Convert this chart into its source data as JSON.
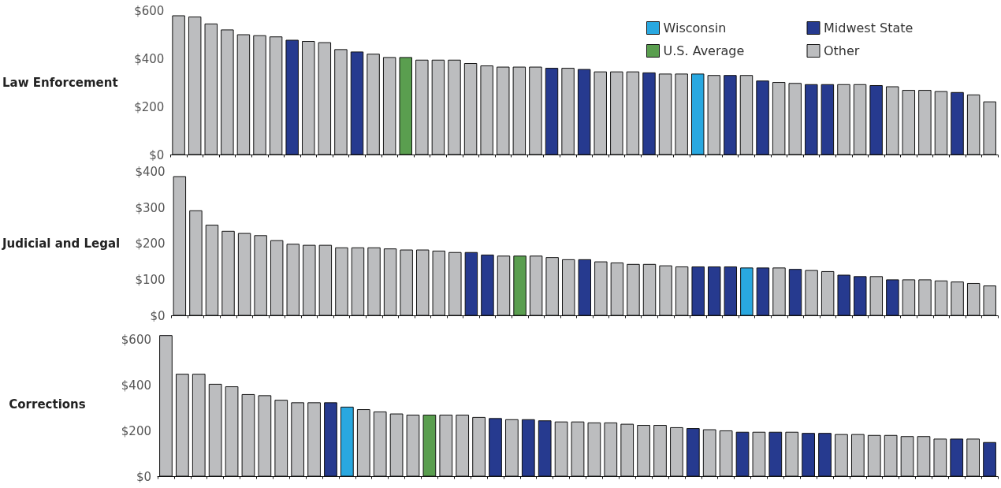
{
  "chart_data": [
    {
      "type": "bar",
      "ylabel": "Law Enforcement",
      "categories": [
        null,
        null,
        null,
        null,
        null,
        null,
        null,
        null,
        null,
        null,
        null,
        null,
        null,
        null,
        null,
        null,
        null,
        null,
        null,
        null,
        null,
        null,
        null,
        null,
        null,
        null,
        null,
        null,
        null,
        null,
        null,
        null,
        null,
        null,
        null,
        null,
        null,
        null,
        null,
        null,
        null,
        null,
        null,
        null,
        null,
        null,
        null,
        null,
        null,
        null,
        null
      ],
      "stacked": true,
      "legend": "top right",
      "tick_labels": "y",
      "grid": false,
      "ylim": [
        0,
        600
      ],
      "yticks": [
        {
          "value": 0,
          "label": "$0"
        },
        {
          "value": 200,
          "label": "$200"
        },
        {
          "value": 400,
          "label": "$400"
        },
        {
          "value": 600,
          "label": "$600"
        }
      ],
      "series": [
        {
          "name": "Wisconsin",
          "color": "#29a8e0",
          "values": [
            null,
            null,
            null,
            null,
            null,
            null,
            null,
            null,
            null,
            null,
            null,
            null,
            null,
            null,
            null,
            null,
            null,
            null,
            null,
            null,
            null,
            null,
            null,
            null,
            null,
            null,
            null,
            null,
            null,
            null,
            null,
            null,
            339,
            null,
            null,
            null,
            null,
            null,
            null,
            null,
            null,
            null,
            null,
            null,
            null,
            null,
            null,
            null,
            null,
            null,
            null
          ]
        },
        {
          "name": "Midwest State",
          "color": "#263a8f",
          "values": [
            null,
            null,
            null,
            null,
            null,
            null,
            null,
            480,
            null,
            null,
            null,
            431,
            null,
            null,
            null,
            null,
            null,
            null,
            null,
            null,
            null,
            null,
            null,
            363,
            null,
            358,
            null,
            null,
            null,
            344,
            null,
            null,
            null,
            null,
            333,
            null,
            310,
            null,
            null,
            295,
            295,
            null,
            null,
            291,
            null,
            null,
            null,
            null,
            262,
            null,
            null
          ]
        },
        {
          "name": "U.S. Average",
          "color": "#5a9e4f",
          "values": [
            null,
            null,
            null,
            null,
            null,
            null,
            null,
            null,
            null,
            null,
            null,
            null,
            null,
            null,
            408,
            null,
            null,
            null,
            null,
            null,
            null,
            null,
            null,
            null,
            null,
            null,
            null,
            null,
            null,
            null,
            null,
            null,
            null,
            null,
            null,
            null,
            null,
            null,
            null,
            null,
            null,
            null,
            null,
            null,
            null,
            null,
            null,
            null,
            null,
            null,
            null
          ]
        },
        {
          "name": "Other",
          "color": "#bcbdbf",
          "values": [
            582,
            577,
            548,
            523,
            503,
            499,
            494,
            null,
            475,
            470,
            441,
            null,
            422,
            408,
            null,
            397,
            397,
            397,
            383,
            373,
            368,
            368,
            368,
            null,
            363,
            null,
            348,
            348,
            348,
            null,
            339,
            339,
            null,
            333,
            null,
            333,
            null,
            304,
            300,
            null,
            null,
            295,
            295,
            null,
            286,
            271,
            271,
            266,
            null,
            252,
            223
          ]
        }
      ]
    },
    {
      "type": "bar",
      "ylabel": "Judicial and Legal",
      "categories": [
        null,
        null,
        null,
        null,
        null,
        null,
        null,
        null,
        null,
        null,
        null,
        null,
        null,
        null,
        null,
        null,
        null,
        null,
        null,
        null,
        null,
        null,
        null,
        null,
        null,
        null,
        null,
        null,
        null,
        null,
        null,
        null,
        null,
        null,
        null,
        null,
        null,
        null,
        null,
        null,
        null,
        null,
        null,
        null,
        null,
        null,
        null,
        null,
        null,
        null,
        null
      ],
      "tick_labels": "y",
      "grid": false,
      "ylim": [
        0,
        400
      ],
      "yticks": [
        {
          "value": 0,
          "label": "$0"
        },
        {
          "value": 100,
          "label": "$100"
        },
        {
          "value": 200,
          "label": "$200"
        },
        {
          "value": 300,
          "label": "$300"
        },
        {
          "value": 400,
          "label": "$400"
        }
      ],
      "values": [
        388,
        293,
        253,
        236,
        230,
        224,
        210,
        200,
        197,
        197,
        190,
        190,
        190,
        187,
        184,
        184,
        181,
        177,
        177,
        170,
        167,
        167,
        167,
        163,
        157,
        157,
        151,
        148,
        144,
        144,
        140,
        137,
        137,
        137,
        137,
        134,
        134,
        134,
        130,
        127,
        124,
        114,
        110,
        110,
        101,
        101,
        101,
        98,
        95,
        91,
        84
      ],
      "colors": [
        "#bcbdbf",
        "#bcbdbf",
        "#bcbdbf",
        "#bcbdbf",
        "#bcbdbf",
        "#bcbdbf",
        "#bcbdbf",
        "#bcbdbf",
        "#bcbdbf",
        "#bcbdbf",
        "#bcbdbf",
        "#bcbdbf",
        "#bcbdbf",
        "#bcbdbf",
        "#bcbdbf",
        "#bcbdbf",
        "#bcbdbf",
        "#bcbdbf",
        "#263a8f",
        "#263a8f",
        "#bcbdbf",
        "#5a9e4f",
        "#bcbdbf",
        "#bcbdbf",
        "#bcbdbf",
        "#263a8f",
        "#bcbdbf",
        "#bcbdbf",
        "#bcbdbf",
        "#bcbdbf",
        "#bcbdbf",
        "#bcbdbf",
        "#263a8f",
        "#263a8f",
        "#263a8f",
        "#29a8e0",
        "#263a8f",
        "#bcbdbf",
        "#263a8f",
        "#bcbdbf",
        "#bcbdbf",
        "#263a8f",
        "#263a8f",
        "#bcbdbf",
        "#263a8f",
        "#bcbdbf",
        "#bcbdbf",
        "#bcbdbf",
        "#bcbdbf",
        "#bcbdbf",
        "#bcbdbf"
      ]
    },
    {
      "type": "bar",
      "ylabel": "Corrections",
      "categories": [
        null,
        null,
        null,
        null,
        null,
        null,
        null,
        null,
        null,
        null,
        null,
        null,
        null,
        null,
        null,
        null,
        null,
        null,
        null,
        null,
        null,
        null,
        null,
        null,
        null,
        null,
        null,
        null,
        null,
        null,
        null,
        null,
        null,
        null,
        null,
        null,
        null,
        null,
        null,
        null,
        null,
        null,
        null,
        null,
        null,
        null,
        null,
        null,
        null,
        null,
        null
      ],
      "tick_labels": "y",
      "grid": false,
      "ylim": [
        0,
        630
      ],
      "yticks": [
        {
          "value": 0,
          "label": "$0"
        },
        {
          "value": 200,
          "label": "$200"
        },
        {
          "value": 400,
          "label": "$400"
        },
        {
          "value": 600,
          "label": "$600"
        }
      ],
      "values": [
        619,
        450,
        450,
        406,
        395,
        361,
        356,
        336,
        325,
        325,
        325,
        306,
        295,
        285,
        276,
        271,
        271,
        271,
        271,
        261,
        256,
        251,
        251,
        246,
        241,
        241,
        237,
        237,
        231,
        226,
        226,
        216,
        212,
        207,
        202,
        196,
        196,
        196,
        196,
        191,
        191,
        186,
        186,
        182,
        182,
        177,
        177,
        166,
        166,
        166,
        151
      ],
      "colors": [
        "#bcbdbf",
        "#bcbdbf",
        "#bcbdbf",
        "#bcbdbf",
        "#bcbdbf",
        "#bcbdbf",
        "#bcbdbf",
        "#bcbdbf",
        "#bcbdbf",
        "#bcbdbf",
        "#263a8f",
        "#29a8e0",
        "#bcbdbf",
        "#bcbdbf",
        "#bcbdbf",
        "#bcbdbf",
        "#5a9e4f",
        "#bcbdbf",
        "#bcbdbf",
        "#bcbdbf",
        "#263a8f",
        "#bcbdbf",
        "#263a8f",
        "#263a8f",
        "#bcbdbf",
        "#bcbdbf",
        "#bcbdbf",
        "#bcbdbf",
        "#bcbdbf",
        "#bcbdbf",
        "#bcbdbf",
        "#bcbdbf",
        "#263a8f",
        "#bcbdbf",
        "#bcbdbf",
        "#263a8f",
        "#bcbdbf",
        "#263a8f",
        "#bcbdbf",
        "#263a8f",
        "#263a8f",
        "#bcbdbf",
        "#bcbdbf",
        "#bcbdbf",
        "#bcbdbf",
        "#bcbdbf",
        "#bcbdbf",
        "#bcbdbf",
        "#263a8f",
        "#bcbdbf",
        "#263a8f"
      ]
    }
  ]
}
